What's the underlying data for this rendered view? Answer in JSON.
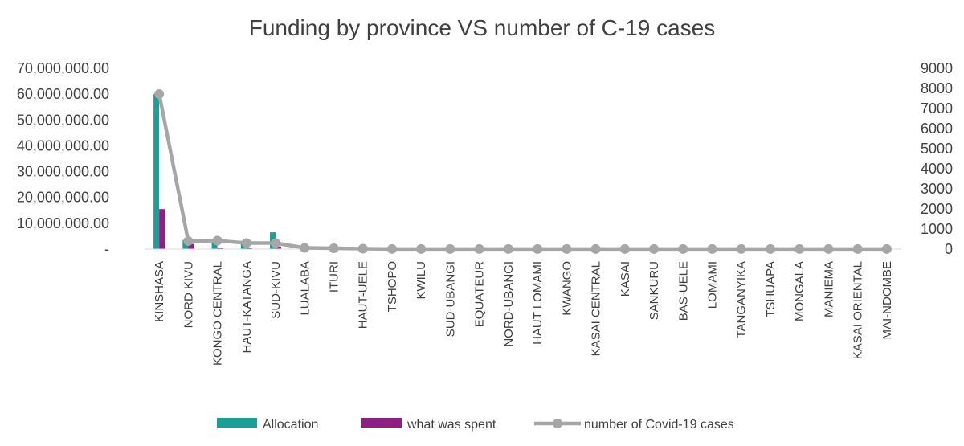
{
  "chart_data": {
    "type": "bar",
    "title": "Funding by province VS number of C-19 cases",
    "categories": [
      "KINSHASA",
      "NORD KIVU",
      "KONGO CENTRAL",
      "HAUT-KATANGA",
      "SUD-KIVU",
      "LUALABA",
      "ITURI",
      "HAUT-UELE",
      "TSHOPO",
      "KWILU",
      "SUD-UBANGI",
      "EQUATEUR",
      "NORD-UBANGI",
      "HAUT LOMAMI",
      "KWANGO",
      "KASAI CENTRAL",
      "KASAI",
      "SANKURU",
      "BAS-UELE",
      "LOMAMI",
      "TANGANYIKA",
      "TSHUAPA",
      "MONGALA",
      "MANIEMA",
      "KASAI ORIENTAL",
      "MAI-NDOMBE"
    ],
    "series": [
      {
        "name": "Allocation",
        "type": "bar",
        "axis": "left",
        "color": "#1a9e95",
        "values": [
          60000000,
          3500000,
          2500000,
          2000000,
          6500000,
          0,
          0,
          0,
          0,
          0,
          0,
          0,
          0,
          0,
          0,
          0,
          0,
          0,
          0,
          0,
          0,
          0,
          0,
          0,
          0,
          0
        ]
      },
      {
        "name": "what was spent",
        "type": "bar",
        "axis": "left",
        "color": "#8e1f83",
        "values": [
          15500000,
          2000000,
          500000,
          400000,
          1000000,
          0,
          0,
          0,
          0,
          0,
          0,
          0,
          0,
          0,
          0,
          0,
          0,
          0,
          0,
          0,
          0,
          0,
          0,
          0,
          0,
          0
        ]
      },
      {
        "name": "number of Covid-19 cases",
        "type": "line",
        "axis": "right",
        "color": "#a6a6a6",
        "values": [
          7720,
          400,
          420,
          300,
          300,
          60,
          40,
          20,
          5,
          5,
          5,
          5,
          5,
          5,
          5,
          5,
          5,
          5,
          5,
          5,
          5,
          5,
          5,
          5,
          5,
          5
        ]
      }
    ],
    "y_left": {
      "min": 0,
      "max": 70000000,
      "tick_labels": [
        "-",
        "10,000,000.00",
        "20,000,000.00",
        "30,000,000.00",
        "40,000,000.00",
        "50,000,000.00",
        "60,000,000.00",
        "70,000,000.00"
      ]
    },
    "y_right": {
      "min": 0,
      "max": 9000,
      "tick_labels": [
        "0",
        "1000",
        "2000",
        "3000",
        "4000",
        "5000",
        "6000",
        "7000",
        "8000",
        "9000"
      ]
    },
    "grid": false,
    "legend_position": "bottom"
  }
}
